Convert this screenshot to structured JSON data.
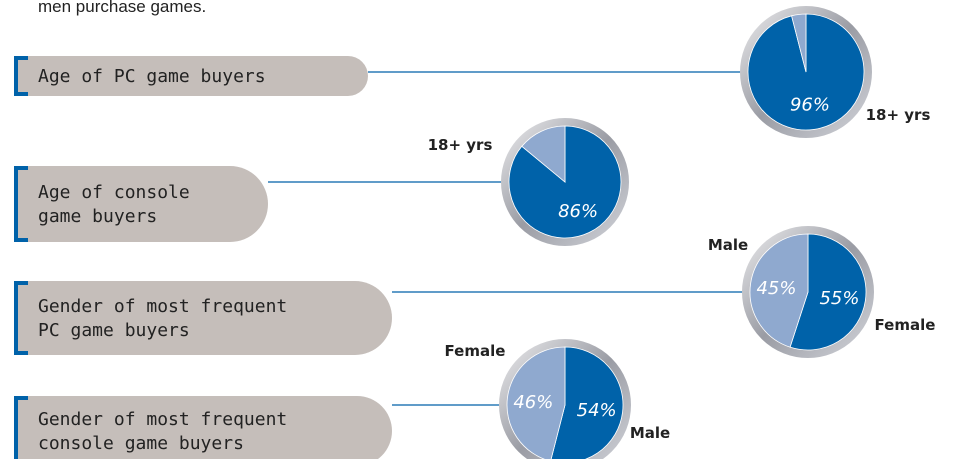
{
  "caption": "men purchase games.",
  "chart_data": [
    {
      "type": "pie",
      "title": [
        "Age of PC game buyers"
      ],
      "categories": [
        "18+ yrs",
        null
      ],
      "values": [
        96,
        4
      ],
      "value_labels": [
        "96%",
        null
      ],
      "colors": [
        "#0062a9",
        "#8fa9cf"
      ]
    },
    {
      "type": "pie",
      "title": [
        "Age of console",
        "game buyers"
      ],
      "categories": [
        "18+ yrs",
        null
      ],
      "values": [
        86,
        14
      ],
      "value_labels": [
        "86%",
        null
      ],
      "colors": [
        "#0062a9",
        "#8fa9cf"
      ]
    },
    {
      "type": "pie",
      "title": [
        "Gender of most frequent",
        "PC game buyers"
      ],
      "categories": [
        "Female",
        "Male"
      ],
      "values": [
        55,
        45
      ],
      "value_labels": [
        "55%",
        "45%"
      ],
      "colors": [
        "#0062a9",
        "#8fa9cf"
      ]
    },
    {
      "type": "pie",
      "title": [
        "Gender of most frequent",
        "console game buyers"
      ],
      "categories": [
        "Male",
        "Female"
      ],
      "values": [
        54,
        46
      ],
      "value_labels": [
        "54%",
        "46%"
      ],
      "colors": [
        "#0062a9",
        "#8fa9cf"
      ]
    }
  ]
}
